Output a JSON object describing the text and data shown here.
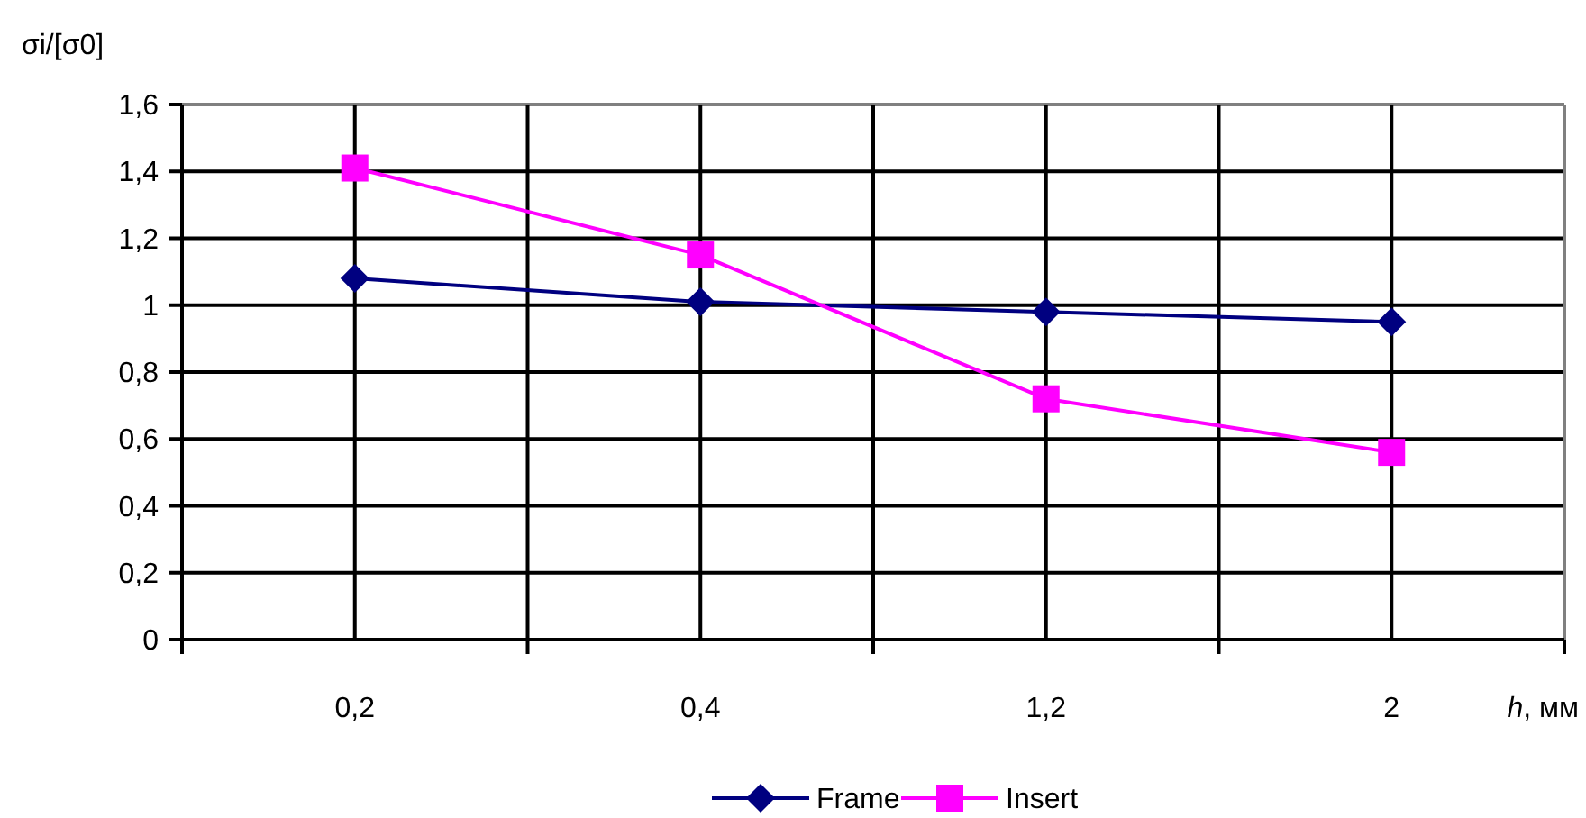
{
  "chart_data": {
    "type": "line",
    "ylabel": "σi/[σ0]",
    "xlabel": "h, мм",
    "categories": [
      "0,2",
      "0,4",
      "1,2",
      "2"
    ],
    "series": [
      {
        "name": "Frame",
        "color": "#000080",
        "values": [
          1.08,
          1.01,
          0.98,
          0.95
        ],
        "marker": "diamond"
      },
      {
        "name": "Insert",
        "color": "#ff00ff",
        "values": [
          1.41,
          1.15,
          0.72,
          0.56
        ],
        "marker": "square"
      }
    ],
    "ylim": [
      0,
      1.6
    ],
    "yticks": [
      0,
      {
        "value": 0.2,
        "label": "0,2"
      },
      {
        "value": 0.4,
        "label": "0,4"
      },
      {
        "value": 0.6,
        "label": "0,6"
      },
      {
        "value": 0.8,
        "label": "0,8"
      },
      1,
      {
        "value": 1.2,
        "label": "1,2"
      },
      {
        "value": 1.4,
        "label": "1,4"
      },
      {
        "value": 1.6,
        "label": "1,6"
      }
    ],
    "grid": true,
    "legend": "bottom"
  }
}
